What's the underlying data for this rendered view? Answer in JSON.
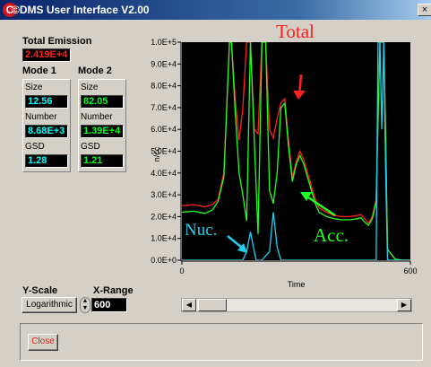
{
  "window": {
    "title": "©DMS User Interface V2.00",
    "close_glyph": "×"
  },
  "total_emission": {
    "label": "Total Emission",
    "value": "2.419E+4"
  },
  "mode1": {
    "title": "Mode 1",
    "size_label": "Size",
    "size_value": "12.56",
    "number_label": "Number",
    "number_value": "8.68E+3",
    "gsd_label": "GSD",
    "gsd_value": "1.28"
  },
  "mode2": {
    "title": "Mode 2",
    "size_label": "Size",
    "size_value": "82.05",
    "number_label": "Number",
    "number_value": "1.39E+4",
    "gsd_label": "GSD",
    "gsd_value": "1.21"
  },
  "y_scale": {
    "label": "Y-Scale",
    "value": "Logarithmic"
  },
  "x_range": {
    "label": "X-Range",
    "value": "600"
  },
  "close_button": {
    "label": "Close"
  },
  "annotations": {
    "total": "Total",
    "nuc": "Nuc.",
    "acc": "Acc."
  },
  "colors": {
    "total": "#ff2020",
    "acc": "#20ff20",
    "nuc": "#20d0f0",
    "value_cyan": "#00ffff",
    "value_green": "#00ff20",
    "value_red": "#ff2020",
    "title_bar": "#0a246a"
  },
  "chart_data": {
    "type": "line",
    "title": "",
    "xlabel": "Time",
    "ylabel": "n/cc",
    "xlim": [
      0,
      600
    ],
    "ylim": [
      0,
      100000
    ],
    "y_tick_labels": [
      "1.0E+5",
      "9.0E+4",
      "8.0E+4",
      "7.0E+4",
      "6.0E+4",
      "5.0E+4",
      "4.0E+4",
      "3.0E+4",
      "2.0E+4",
      "1.0E+4",
      "0.0E+0"
    ],
    "x_tick_labels": [
      "0",
      "600"
    ],
    "grid": false,
    "series": [
      {
        "name": "Total",
        "color": "#ff2020",
        "x": [
          0,
          30,
          60,
          80,
          95,
          110,
          125,
          130,
          140,
          150,
          160,
          170,
          180,
          190,
          200,
          210,
          220,
          230,
          240,
          250,
          260,
          270,
          280,
          290,
          300,
          310,
          320,
          330,
          340,
          350,
          360,
          380,
          400,
          420,
          440,
          460,
          470,
          480,
          490,
          500,
          510,
          520,
          530,
          535,
          540,
          560,
          580,
          600
        ],
        "y": [
          25000,
          25500,
          24500,
          25500,
          28000,
          40000,
          100000,
          100000,
          74000,
          55000,
          70000,
          100000,
          100000,
          60000,
          58000,
          100000,
          100000,
          60000,
          56000,
          65000,
          72000,
          74000,
          55000,
          38000,
          45000,
          50000,
          46000,
          40000,
          34000,
          28000,
          24000,
          22000,
          20500,
          20000,
          20000,
          20500,
          21000,
          19000,
          17000,
          20000,
          28000,
          100000,
          100000,
          60000,
          5000,
          500,
          0,
          0
        ]
      },
      {
        "name": "Acc.",
        "color": "#20ff20",
        "x": [
          0,
          30,
          60,
          80,
          95,
          110,
          125,
          130,
          140,
          150,
          160,
          170,
          180,
          190,
          200,
          210,
          220,
          230,
          240,
          250,
          260,
          270,
          280,
          290,
          300,
          310,
          320,
          330,
          340,
          350,
          360,
          380,
          400,
          420,
          440,
          460,
          470,
          480,
          490,
          500,
          510,
          520,
          530,
          535,
          540,
          560,
          580,
          600
        ],
        "y": [
          22000,
          22500,
          21500,
          23000,
          27000,
          38000,
          100000,
          100000,
          68000,
          40000,
          30000,
          18000,
          100000,
          55000,
          12000,
          100000,
          100000,
          32000,
          26000,
          40000,
          70000,
          72000,
          52000,
          36000,
          44000,
          48000,
          44000,
          38000,
          32000,
          26000,
          22000,
          20000,
          19000,
          18500,
          18500,
          19000,
          19500,
          17500,
          16000,
          19000,
          27000,
          100000,
          100000,
          55000,
          5000,
          500,
          0,
          0
        ]
      },
      {
        "name": "Nuc.",
        "color": "#20d0f0",
        "x": [
          0,
          160,
          170,
          180,
          190,
          195,
          210,
          230,
          240,
          250,
          260,
          400,
          510,
          515,
          520,
          525,
          530,
          535,
          540,
          600
        ],
        "y": [
          0,
          0,
          4000,
          13000,
          4000,
          0,
          0,
          4000,
          22000,
          6000,
          0,
          0,
          0,
          100000,
          100000,
          60000,
          100000,
          40000,
          0,
          0
        ]
      }
    ]
  }
}
